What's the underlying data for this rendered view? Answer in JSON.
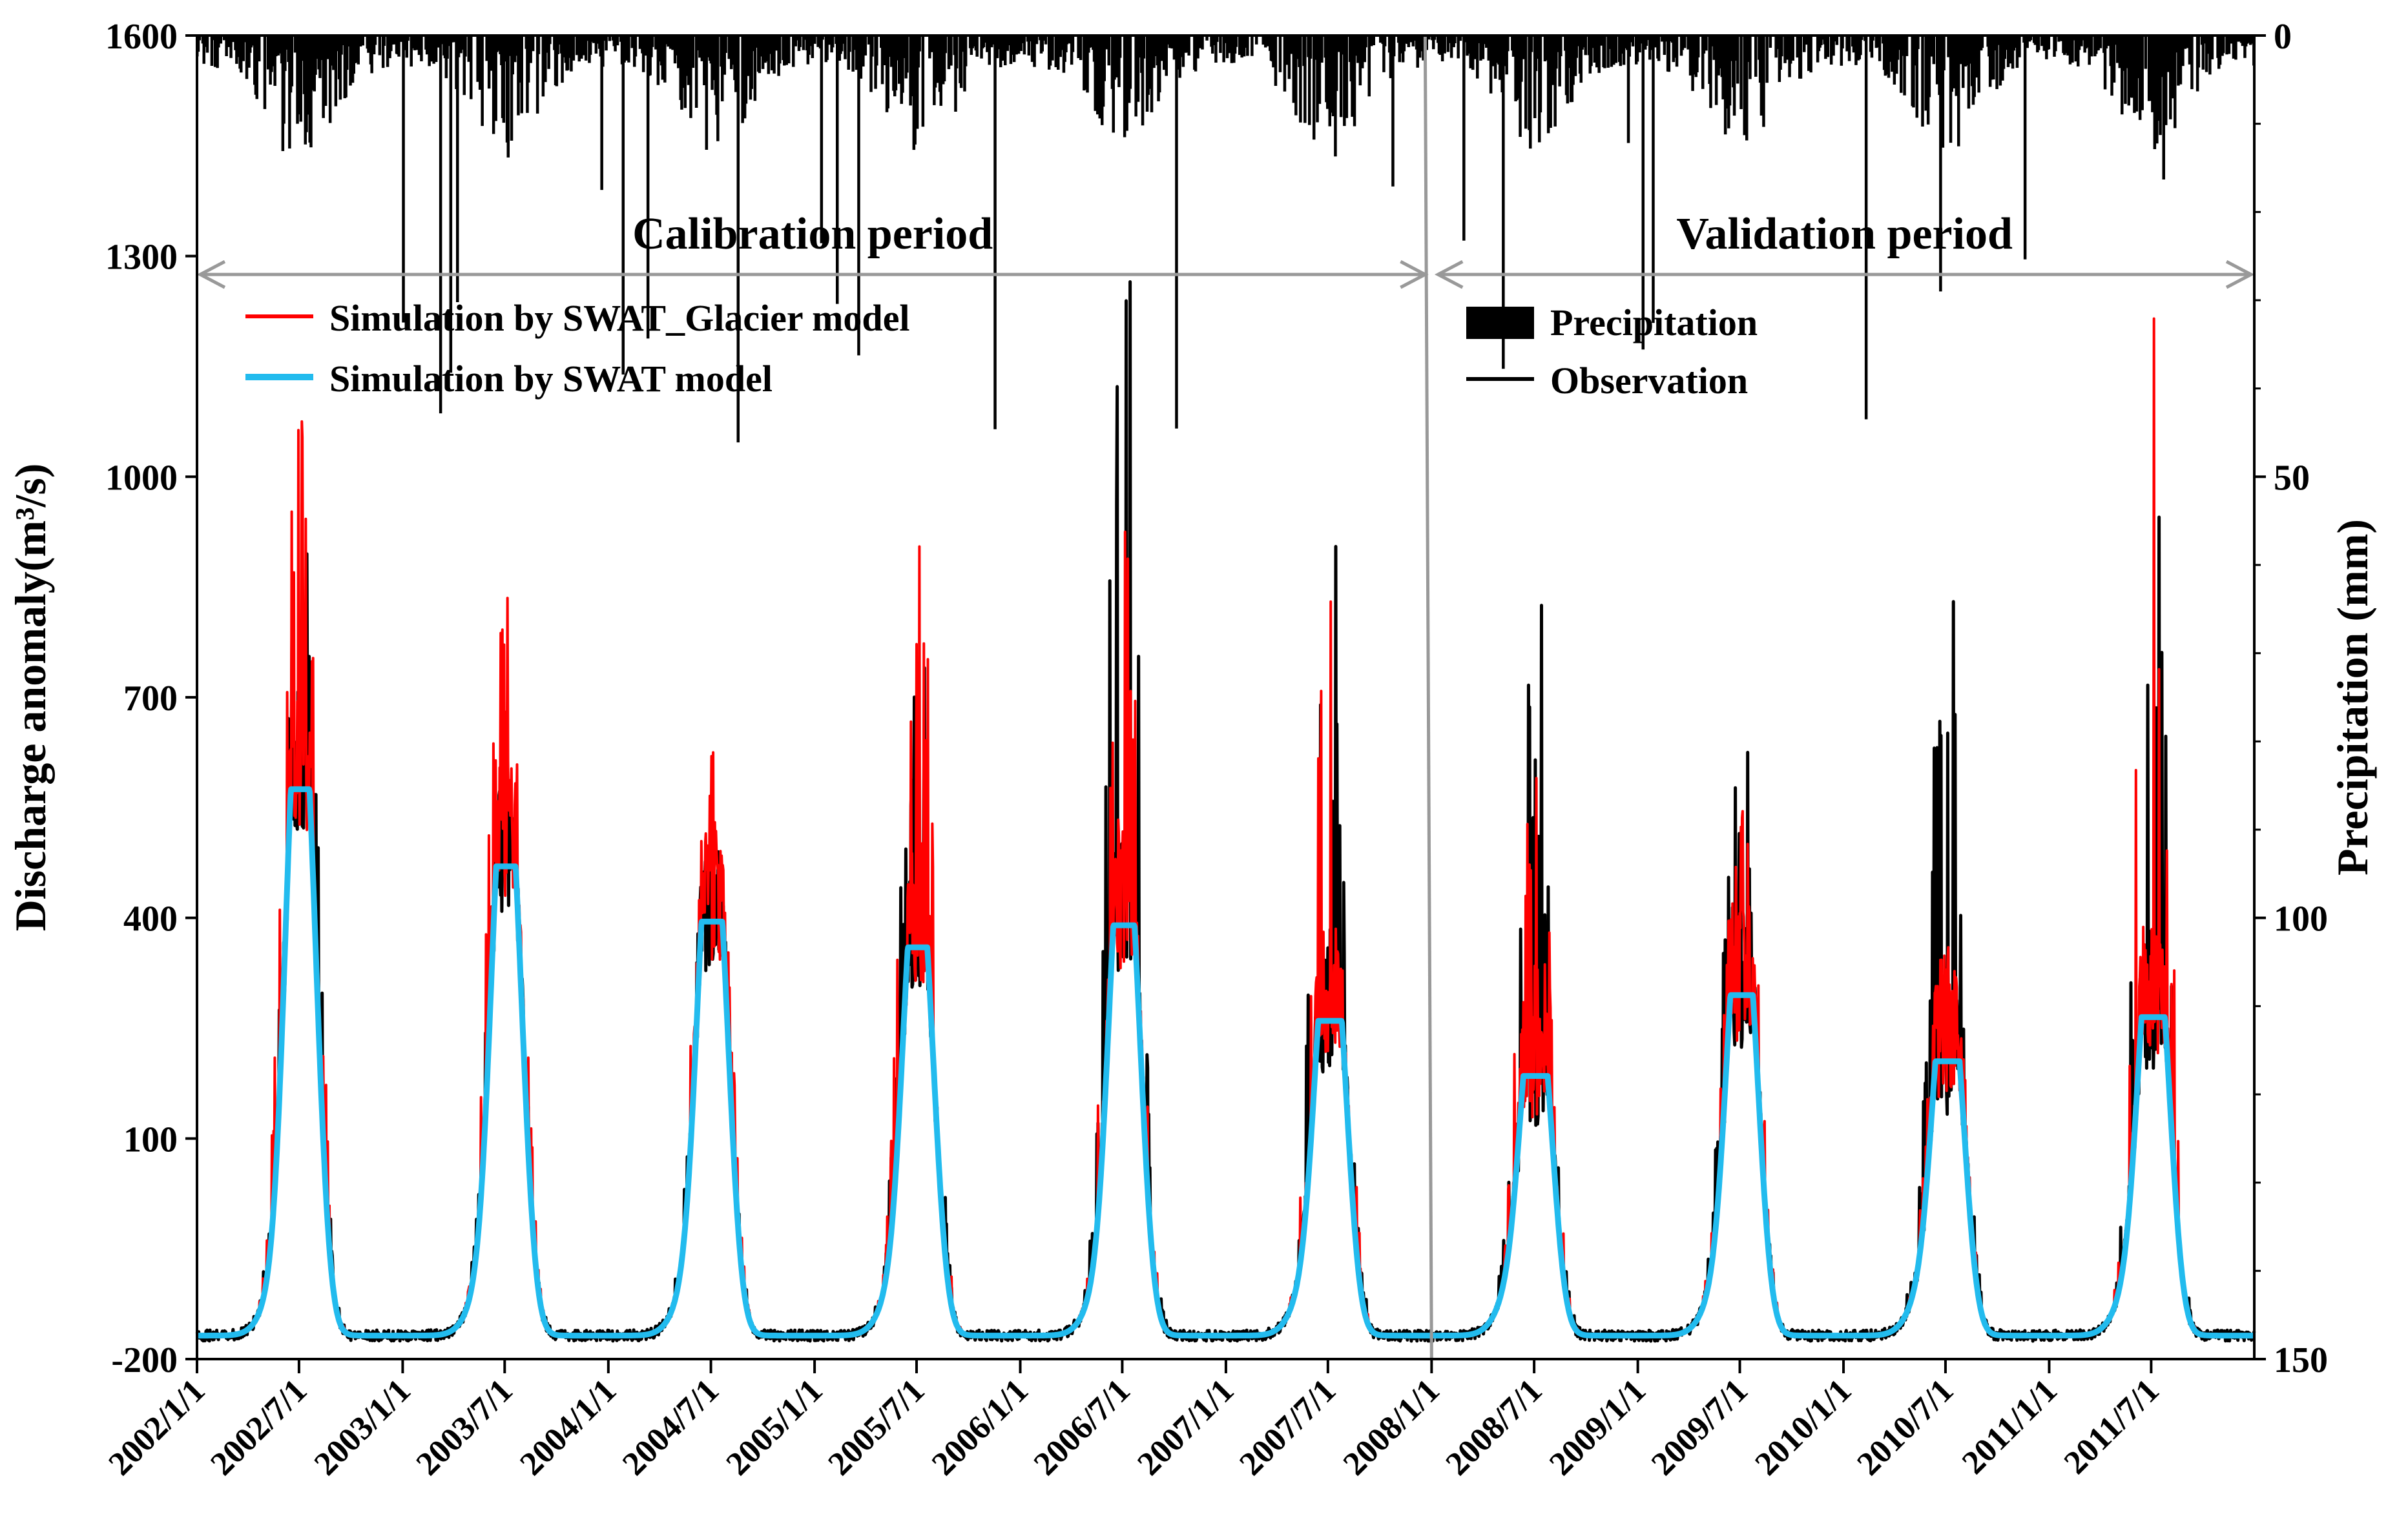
{
  "chart_data": {
    "type": "line",
    "colors": {
      "observation": "#000000",
      "swat_glacier": "#ff0000",
      "swat": "#22bbee",
      "precipitation": "#000000",
      "divider": "#999999",
      "arrow": "#999999"
    },
    "left_axis": {
      "label": "Discharge anomaly(m³/s)",
      "ylim": [
        -200,
        1600
      ],
      "ticks": [
        -200,
        100,
        400,
        700,
        1000,
        1300,
        1600
      ],
      "tick_labels": [
        "-200",
        "100",
        "400",
        "700",
        "1000",
        "1300",
        "1600"
      ]
    },
    "right_axis": {
      "label": "Precipitation (mm)",
      "ylim": [
        0,
        150
      ],
      "inverted": true,
      "ticks": [
        0,
        50,
        100,
        150
      ],
      "tick_labels": [
        "0",
        "50",
        "100",
        "150"
      ]
    },
    "x_axis": {
      "start": "2002/1/1",
      "end": "2011/12/31",
      "tick_labels": [
        "2002/1/1",
        "2002/7/1",
        "2003/1/1",
        "2003/7/1",
        "2004/1/1",
        "2004/7/1",
        "2005/1/1",
        "2005/7/1",
        "2006/1/1",
        "2006/7/1",
        "2007/1/1",
        "2007/7/1",
        "2008/1/1",
        "2008/7/1",
        "2009/1/1",
        "2009/7/1",
        "2010/1/1",
        "2010/7/1",
        "2011/1/1",
        "2011/7/1"
      ]
    },
    "periods": [
      {
        "label": "Calibration period",
        "from": "2002/1/1",
        "to": "2007/12/31"
      },
      {
        "label": "Validation period",
        "from": "2008/1/1",
        "to": "2011/12/31"
      }
    ],
    "divider_date": "2008/1/1",
    "legend": [
      {
        "label": "Simulation by SWAT_Glacier model",
        "series": "swat_glacier",
        "symbol": "line"
      },
      {
        "label": "Simulation by SWAT model",
        "series": "swat",
        "symbol": "line"
      },
      {
        "label": "Precipitation",
        "series": "precipitation",
        "symbol": "bar"
      },
      {
        "label": "Observation",
        "series": "observation",
        "symbol": "line"
      }
    ],
    "baseline": -168,
    "annual_peaks": [
      {
        "year": 2002,
        "observation": 895,
        "swat_glacier": 1075,
        "swat": 575,
        "swat_second": 345
      },
      {
        "year": 2003,
        "observation": 535,
        "swat_glacier": 835,
        "swat": 470,
        "swat_second": 290
      },
      {
        "year": 2004,
        "observation": 490,
        "swat_glacier": 625,
        "swat": 395,
        "swat_second": 285
      },
      {
        "year": 2005,
        "observation": 740,
        "swat_glacier": 905,
        "swat": 360,
        "swat_second": 195
      },
      {
        "year": 2006,
        "observation": 1265,
        "swat_glacier": 925,
        "swat": 390,
        "swat_second": 290
      },
      {
        "year": 2007,
        "observation": 905,
        "swat_glacier": 830,
        "swat": 260,
        "swat_second": 240
      },
      {
        "year": 2008,
        "observation": 825,
        "swat_glacier": 590,
        "swat": 185,
        "swat_second": 170
      },
      {
        "year": 2009,
        "observation": 625,
        "swat_glacier": 545,
        "swat": 295,
        "swat_second": 240
      },
      {
        "year": 2010,
        "observation": 830,
        "swat_glacier": 360,
        "swat": 205,
        "swat_second": 190
      },
      {
        "year": 2011,
        "observation": 945,
        "swat_glacier": 1215,
        "swat": 265,
        "swat_second": 240
      }
    ],
    "precipitation_max_mm": 52
  }
}
